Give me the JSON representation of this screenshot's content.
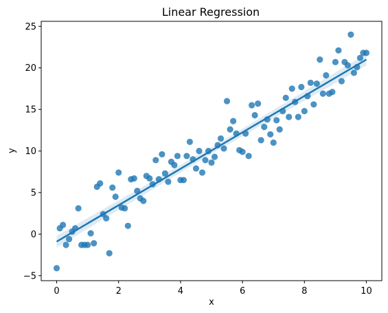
{
  "chart_data": {
    "type": "scatter",
    "title": "Linear Regression",
    "xlabel": "x",
    "ylabel": "y",
    "xlim": [
      -0.5,
      10.5
    ],
    "ylim": [
      -5.6,
      25.6
    ],
    "xticks": [
      0,
      2,
      4,
      6,
      8,
      10
    ],
    "yticks": [
      -5,
      0,
      5,
      10,
      15,
      20,
      25
    ],
    "grid": false,
    "legend": "none",
    "colors": {
      "point": "#1f77b4",
      "line": "#1f77b4"
    },
    "regression": {
      "x": [
        0,
        10
      ],
      "y": [
        -0.9,
        21.0
      ],
      "ci_halfwidth": [
        0.7,
        0.4,
        0.7
      ]
    },
    "points": {
      "x": [
        0.0,
        0.1,
        0.2,
        0.3,
        0.4,
        0.5,
        0.6,
        0.7,
        0.8,
        0.9,
        1.0,
        1.1,
        1.2,
        1.3,
        1.4,
        1.5,
        1.6,
        1.7,
        1.8,
        1.9,
        2.0,
        2.1,
        2.2,
        2.3,
        2.4,
        2.5,
        2.6,
        2.7,
        2.8,
        2.9,
        3.0,
        3.1,
        3.2,
        3.3,
        3.4,
        3.5,
        3.6,
        3.7,
        3.8,
        3.9,
        4.0,
        4.1,
        4.2,
        4.3,
        4.4,
        4.5,
        4.6,
        4.7,
        4.8,
        4.9,
        5.0,
        5.1,
        5.2,
        5.3,
        5.4,
        5.5,
        5.6,
        5.7,
        5.8,
        5.9,
        6.0,
        6.1,
        6.2,
        6.3,
        6.4,
        6.5,
        6.6,
        6.7,
        6.8,
        6.9,
        7.0,
        7.1,
        7.2,
        7.3,
        7.4,
        7.5,
        7.6,
        7.7,
        7.8,
        7.9,
        8.0,
        8.1,
        8.2,
        8.3,
        8.4,
        8.5,
        8.6,
        8.7,
        8.8,
        8.9,
        9.0,
        9.1,
        9.2,
        9.3,
        9.4,
        9.5,
        9.6,
        9.7,
        9.8,
        9.9,
        10.0
      ],
      "y": [
        -4.1,
        0.7,
        1.1,
        -1.3,
        -0.6,
        0.3,
        0.7,
        3.1,
        -1.3,
        -1.3,
        -1.3,
        0.1,
        -1.1,
        5.7,
        6.1,
        2.4,
        1.9,
        -2.3,
        5.6,
        4.5,
        7.4,
        3.2,
        3.1,
        1.0,
        6.6,
        6.7,
        5.2,
        4.3,
        4.0,
        7.0,
        6.7,
        6.0,
        8.9,
        6.6,
        9.6,
        7.3,
        6.3,
        8.7,
        8.3,
        9.4,
        6.5,
        6.5,
        9.4,
        11.1,
        9.0,
        7.9,
        10.0,
        7.4,
        8.9,
        10.0,
        8.6,
        9.3,
        10.7,
        11.5,
        10.3,
        16.0,
        12.6,
        13.6,
        12.1,
        10.1,
        9.9,
        12.1,
        9.4,
        15.5,
        14.3,
        15.7,
        11.3,
        12.9,
        13.8,
        12.0,
        11.0,
        13.7,
        12.6,
        14.8,
        16.4,
        14.1,
        17.5,
        15.9,
        14.1,
        17.7,
        14.8,
        16.6,
        18.2,
        15.6,
        18.1,
        21.0,
        16.9,
        19.1,
        16.9,
        17.1,
        20.7,
        22.1,
        18.4,
        20.7,
        20.3,
        24.0,
        19.4,
        20.1,
        21.2,
        21.8,
        21.8
      ]
    }
  }
}
